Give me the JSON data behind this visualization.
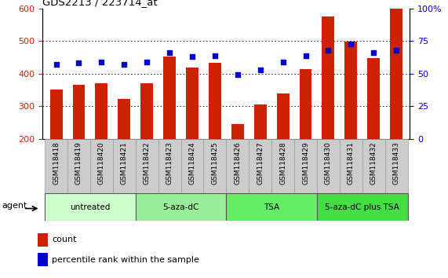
{
  "title": "GDS2213 / 223714_at",
  "samples": [
    "GSM118418",
    "GSM118419",
    "GSM118420",
    "GSM118421",
    "GSM118422",
    "GSM118423",
    "GSM118424",
    "GSM118425",
    "GSM118426",
    "GSM118427",
    "GSM118428",
    "GSM118429",
    "GSM118430",
    "GSM118431",
    "GSM118432",
    "GSM118433"
  ],
  "counts": [
    352,
    365,
    370,
    323,
    370,
    452,
    418,
    432,
    245,
    305,
    340,
    413,
    575,
    497,
    447,
    598
  ],
  "percentiles": [
    57,
    58,
    59,
    57,
    59,
    66,
    63,
    64,
    49,
    53,
    59,
    64,
    68,
    73,
    66,
    68
  ],
  "groups": [
    {
      "label": "untreated",
      "start": 0,
      "end": 4,
      "color": "#ccffcc"
    },
    {
      "label": "5-aza-dC",
      "start": 4,
      "end": 8,
      "color": "#99ee99"
    },
    {
      "label": "TSA",
      "start": 8,
      "end": 12,
      "color": "#66ee66"
    },
    {
      "label": "5-aza-dC plus TSA",
      "start": 12,
      "end": 16,
      "color": "#44dd44"
    }
  ],
  "bar_color": "#cc2200",
  "dot_color": "#0000cc",
  "ylim_left": [
    200,
    600
  ],
  "ylim_right": [
    0,
    100
  ],
  "yticks_left": [
    200,
    300,
    400,
    500,
    600
  ],
  "yticks_right": [
    0,
    25,
    50,
    75,
    100
  ],
  "left_tick_color": "#cc2200",
  "right_tick_color": "#0000cc",
  "bar_width": 0.55,
  "cell_bg": "#cccccc",
  "group_border_color": "#555555",
  "agent_label": "agent",
  "legend_count": "count",
  "legend_pct": "percentile rank within the sample"
}
